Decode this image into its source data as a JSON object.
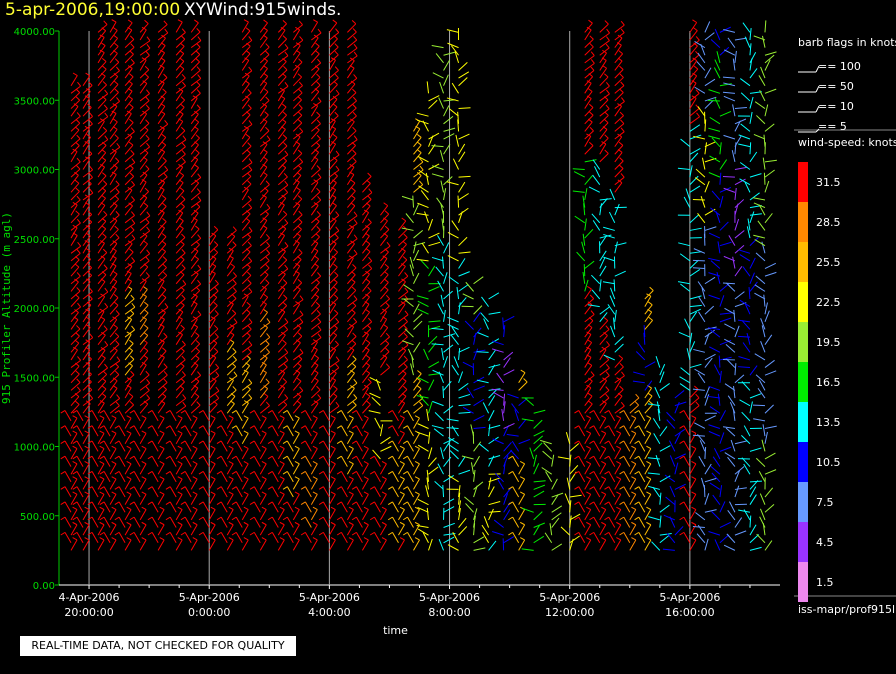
{
  "header": {
    "datetime": "5-apr-2006,19:00:00",
    "title": "XYWind:915winds."
  },
  "quality_note": "REAL-TIME DATA, NOT CHECKED FOR QUALITY",
  "legend": {
    "flags_title": "barb flags in knots",
    "flags": [
      "== 100",
      "== 50",
      "== 10",
      "== 5"
    ],
    "speed_title": "wind-speed: knots",
    "speed_bins": [
      {
        "label": "31.5",
        "color": "#ff0000"
      },
      {
        "label": "28.5",
        "color": "#ff8800"
      },
      {
        "label": "25.5",
        "color": "#ffbb00"
      },
      {
        "label": "22.5",
        "color": "#ffff00"
      },
      {
        "label": "19.5",
        "color": "#99ee33"
      },
      {
        "label": "16.5",
        "color": "#00ee00"
      },
      {
        "label": "13.5",
        "color": "#00ffff"
      },
      {
        "label": "10.5",
        "color": "#0000ff"
      },
      {
        "label": "7.5",
        "color": "#6699ff"
      },
      {
        "label": "4.5",
        "color": "#9933ff"
      },
      {
        "label": "1.5",
        "color": "#ee88ee"
      }
    ],
    "source": "iss-mapr/prof915l"
  },
  "chart_data": {
    "type": "wind-barb time-height plot",
    "ylabel": "915 Profiler Altitude (m agl)",
    "xlabel": "time",
    "ylim": [
      0,
      4000
    ],
    "yticks": [
      "0.00",
      "500.00",
      "1000.00",
      "1500.00",
      "2000.00",
      "2500.00",
      "3000.00",
      "3500.00",
      "4000.00"
    ],
    "xticks": [
      {
        "date": "4-Apr-2006",
        "time": "20:00:00",
        "hours": 20
      },
      {
        "date": "5-Apr-2006",
        "time": "0:00:00",
        "hours": 24
      },
      {
        "date": "5-Apr-2006",
        "time": "4:00:00",
        "hours": 28
      },
      {
        "date": "5-Apr-2006",
        "time": "8:00:00",
        "hours": 32
      },
      {
        "date": "5-Apr-2006",
        "time": "12:00:00",
        "hours": 36
      },
      {
        "date": "5-Apr-2006",
        "time": "16:00:00",
        "hours": 40
      }
    ],
    "xlim_hours": [
      19.0,
      43.0
    ],
    "grid": "vertical lines at labeled time ticks",
    "speed_units": "knots",
    "profiles": [
      {
        "h": 19.4,
        "bottom": 250,
        "top": 3650,
        "color": "#ff0000"
      },
      {
        "h": 19.8,
        "bottom": 250,
        "top": 3650,
        "color": "#ff0000"
      },
      {
        "h": 20.3,
        "bottom": 250,
        "top": 4000,
        "color": "#ff0000"
      },
      {
        "h": 20.7,
        "bottom": 250,
        "top": 4000,
        "color": "#ff0000"
      },
      {
        "h": 21.2,
        "bottom": 250,
        "top": 4000,
        "color": "#ff0000",
        "mid": [
          1500,
          2100,
          "#ffbb00"
        ]
      },
      {
        "h": 21.7,
        "bottom": 250,
        "top": 4000,
        "color": "#ff0000",
        "mid": [
          1700,
          2100,
          "#ff8800"
        ]
      },
      {
        "h": 22.3,
        "bottom": 250,
        "top": 4000,
        "color": "#ff0000"
      },
      {
        "h": 22.9,
        "bottom": 250,
        "top": 4000,
        "color": "#ff0000"
      },
      {
        "h": 23.4,
        "bottom": 250,
        "top": 4000,
        "color": "#ff0000"
      },
      {
        "h": 24.0,
        "bottom": 250,
        "top": 2550,
        "color": "#ff0000"
      },
      {
        "h": 24.6,
        "bottom": 250,
        "top": 2550,
        "color": "#ff0000",
        "mid": [
          1200,
          1700,
          "#ffbb00"
        ]
      },
      {
        "h": 25.1,
        "bottom": 250,
        "top": 4000,
        "color": "#ff0000",
        "mid": [
          1000,
          1600,
          "#ffbb00"
        ]
      },
      {
        "h": 25.7,
        "bottom": 250,
        "top": 4000,
        "color": "#ff0000",
        "mid": [
          1300,
          1900,
          "#ff8800"
        ]
      },
      {
        "h": 26.3,
        "bottom": 250,
        "top": 4000,
        "color": "#ff0000"
      },
      {
        "h": 26.8,
        "bottom": 250,
        "top": 4000,
        "color": "#ff0000",
        "mid": [
          600,
          1200,
          "#ffbb00"
        ]
      },
      {
        "h": 27.4,
        "bottom": 250,
        "top": 4000,
        "color": "#ff0000",
        "mid": [
          400,
          900,
          "#ff8800"
        ]
      },
      {
        "h": 28.0,
        "bottom": 250,
        "top": 4000,
        "color": "#ff0000"
      },
      {
        "h": 28.6,
        "bottom": 250,
        "top": 4000,
        "color": "#ff0000",
        "mid": [
          800,
          1600,
          "#ffbb00"
        ]
      },
      {
        "h": 29.1,
        "bottom": 250,
        "top": 2900,
        "color": "#ff0000"
      },
      {
        "h": 29.7,
        "bottom": 250,
        "top": 2700,
        "color": "#ff0000",
        "mid": [
          900,
          1500,
          "#ffff00"
        ]
      },
      {
        "h": 30.3,
        "bottom": 250,
        "top": 2600,
        "color": "#ff0000",
        "mid": [
          300,
          1000,
          "#ffbb00"
        ]
      },
      {
        "h": 30.8,
        "bottom": 250,
        "top": 3300,
        "color": "#ffbb00",
        "mid": [
          1500,
          2800,
          "#99ee33"
        ]
      },
      {
        "h": 31.3,
        "bottom": 250,
        "top": 3550,
        "color": "#ffff00",
        "mid": [
          1200,
          2300,
          "#00ee00"
        ]
      },
      {
        "h": 31.8,
        "bottom": 250,
        "top": 3900,
        "color": "#00ffff",
        "mid": [
          2500,
          3900,
          "#99ee33"
        ]
      },
      {
        "h": 32.3,
        "bottom": 250,
        "top": 4000,
        "color": "#ffff00",
        "mid": [
          800,
          2300,
          "#00ffff"
        ]
      },
      {
        "h": 32.8,
        "bottom": 250,
        "top": 2200,
        "color": "#99ee33",
        "mid": [
          1100,
          1900,
          "#0000ff"
        ]
      },
      {
        "h": 33.3,
        "bottom": 250,
        "top": 2100,
        "color": "#00ffff",
        "mid": [
          300,
          800,
          "#ffff00"
        ]
      },
      {
        "h": 33.8,
        "bottom": 250,
        "top": 1900,
        "color": "#0000ff",
        "mid": [
          1100,
          1700,
          "#9933ff"
        ]
      },
      {
        "h": 34.3,
        "bottom": 250,
        "top": 1500,
        "color": "#ffbb00",
        "mid": [
          900,
          1400,
          "#0000ff"
        ]
      },
      {
        "h": 34.8,
        "bottom": 250,
        "top": 1350,
        "color": "#00ee00"
      },
      {
        "h": 35.4,
        "bottom": 250,
        "top": 1050,
        "color": "#99ee33"
      },
      {
        "h": 36.0,
        "bottom": 250,
        "top": 1050,
        "color": "#ffff00"
      },
      {
        "h": 36.5,
        "bottom": 250,
        "top": 4000,
        "color": "#ff0000",
        "mid": [
          2100,
          3100,
          "#00ee00"
        ]
      },
      {
        "h": 37.0,
        "bottom": 250,
        "top": 4000,
        "color": "#ff0000",
        "mid": [
          1900,
          3000,
          "#00ffff"
        ]
      },
      {
        "h": 37.5,
        "bottom": 250,
        "top": 4000,
        "color": "#ff0000",
        "mid": [
          1600,
          2800,
          "#00ffff"
        ]
      },
      {
        "h": 38.0,
        "bottom": 250,
        "top": 1300,
        "color": "#ff8800"
      },
      {
        "h": 38.5,
        "bottom": 250,
        "top": 2100,
        "color": "#ffbb00",
        "mid": [
          1400,
          1800,
          "#0000ff"
        ]
      },
      {
        "h": 39.0,
        "bottom": 250,
        "top": 1600,
        "color": "#00ffff"
      },
      {
        "h": 39.5,
        "bottom": 250,
        "top": 1400,
        "color": "#0000ff"
      },
      {
        "h": 40.0,
        "bottom": 250,
        "top": 4000,
        "color": "#ff0000",
        "mid": [
          1400,
          3300,
          "#00ffff"
        ]
      },
      {
        "h": 40.5,
        "bottom": 250,
        "top": 4000,
        "color": "#6699ff",
        "mid": [
          2600,
          3400,
          "#ffff00"
        ]
      },
      {
        "h": 41.0,
        "bottom": 250,
        "top": 4000,
        "color": "#0000ff",
        "mid": [
          2900,
          3800,
          "#00ee00"
        ]
      },
      {
        "h": 41.5,
        "bottom": 250,
        "top": 4000,
        "color": "#6699ff",
        "mid": [
          2200,
          3000,
          "#9933ff"
        ]
      },
      {
        "h": 42.0,
        "bottom": 250,
        "top": 4000,
        "color": "#00ffff",
        "mid": [
          1500,
          2500,
          "#0000ff"
        ]
      },
      {
        "h": 42.5,
        "bottom": 250,
        "top": 4000,
        "color": "#99ee33",
        "mid": [
          1000,
          2400,
          "#6699ff"
        ]
      }
    ]
  }
}
